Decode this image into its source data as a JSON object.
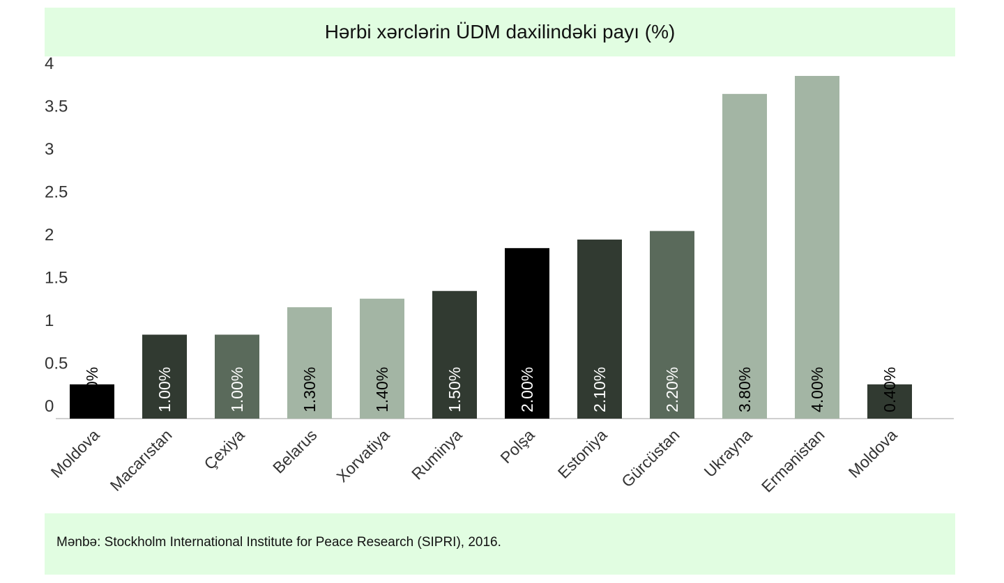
{
  "title": "Hərbi xərclərin ÜDM daxilindəki payı (%)",
  "source": "Mənbə: Stockholm International Institute for Peace Research (SIPRI), 2016.",
  "chart_data": {
    "type": "bar",
    "categories": [
      "Moldova",
      "Macarıstan",
      "Çexiya",
      "Belarus",
      "Xorvatiya",
      "Ruminya",
      "Polşa",
      "Estoniya",
      "Gürcüstan",
      "Ukrayna",
      "Ermənistan",
      "Moldova"
    ],
    "values": [
      0.4,
      1.0,
      1.0,
      1.3,
      1.4,
      1.5,
      2.0,
      2.1,
      2.2,
      3.8,
      4.0,
      0.4
    ],
    "bar_heights_on_axis": [
      0.4,
      0.98,
      0.98,
      1.3,
      1.4,
      1.49,
      1.99,
      2.09,
      2.19,
      3.79,
      4.0,
      0.4
    ],
    "data_labels": [
      "0.40%",
      "1.00%",
      "1.00%",
      "1.30%",
      "1.40%",
      "1.50%",
      "2.00%",
      "2.10%",
      "2.20%",
      "3.80%",
      "4.00%",
      "0.40%"
    ],
    "colors": [
      "#000000",
      "#313a31",
      "#5a6a5b",
      "#a3b5a4",
      "#a3b5a4",
      "#313a31",
      "#000000",
      "#313a31",
      "#5a6a5b",
      "#a3b5a4",
      "#a3b5a4",
      "#313a31"
    ],
    "label_colors": [
      "#000000",
      "#ffffff",
      "#ffffff",
      "#000000",
      "#000000",
      "#ffffff",
      "#ffffff",
      "#ffffff",
      "#ffffff",
      "#000000",
      "#000000",
      "#000000"
    ],
    "yticks": [
      "0",
      "0.5",
      "1",
      "1.5",
      "2",
      "2.5",
      "3",
      "3.5",
      "4"
    ],
    "ylim": [
      0,
      4
    ],
    "grid": false,
    "legend": "none",
    "xlabel": "",
    "ylabel": ""
  }
}
